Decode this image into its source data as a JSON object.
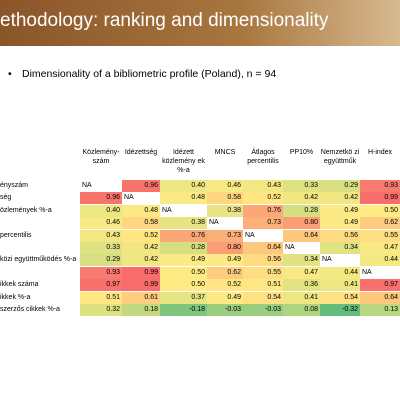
{
  "header": {
    "title": "ethodology: ranking and dimensionality"
  },
  "bullet": "Dimensionality of a bibliometric profile (Poland), n = 94",
  "table": {
    "columns": [
      "Közlemény-szám",
      "Idézettség",
      "Idézett közlemény ek %-a",
      "MNCS",
      "Átlagos percentilis",
      "PP10%",
      "Nemzetkö zi együttműk",
      "H-index"
    ],
    "row_labels": [
      "ényszám",
      "ség",
      "özlemények %-a",
      null,
      "percentilis",
      null,
      "közi együttműködés %-a",
      null,
      "ikkek száma",
      "ikkek %-a",
      "szerzős cikkek %-a"
    ],
    "rows": [
      [
        "NA",
        "0.96",
        "0.40",
        "0.46",
        "0.43",
        "0.33",
        "0.29",
        "0.93"
      ],
      [
        "0.96",
        "NA",
        "0.48",
        "0.58",
        "0.52",
        "0.42",
        "0.42",
        "0.99"
      ],
      [
        "0.40",
        "0.48",
        "NA",
        "0.38",
        "0.76",
        "0.28",
        "0.49",
        "0.50"
      ],
      [
        "0.46",
        "0.58",
        "0.38",
        "NA",
        "0.73",
        "0.80",
        "0.49",
        "0.62"
      ],
      [
        "0.43",
        "0.52",
        "0.76",
        "0.73",
        "NA",
        "0.64",
        "0.56",
        "0.55"
      ],
      [
        "0.33",
        "0.42",
        "0.28",
        "0.80",
        "0.64",
        "NA",
        "0.34",
        "0.47"
      ],
      [
        "0.29",
        "0.42",
        "0.49",
        "0.49",
        "0.56",
        "0.34",
        "NA",
        "0.44"
      ],
      [
        "0.93",
        "0.99",
        "0.50",
        "0.62",
        "0.55",
        "0.47",
        "0.44",
        "NA"
      ],
      [
        "0.97",
        "0.99",
        "0.50",
        "0.52",
        "0.51",
        "0.36",
        "0.41",
        "0.97"
      ],
      [
        "0.51",
        "0.61",
        "0.37",
        "0.49",
        "0.54",
        "0.41",
        "0.54",
        "0.64"
      ],
      [
        "0.32",
        "0.18",
        "-0.18",
        "-0.03",
        "-0.03",
        "0.08",
        "-0.32",
        "0.13"
      ]
    ]
  }
}
